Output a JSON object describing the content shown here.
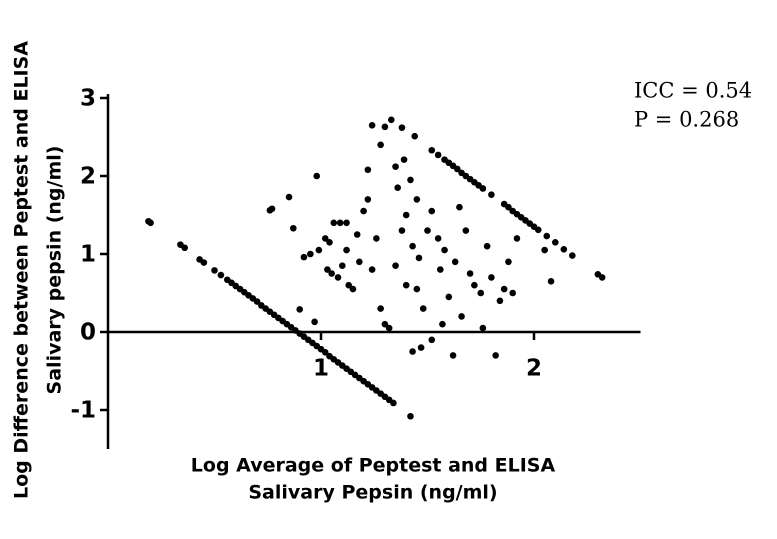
{
  "chart_data": {
    "type": "scatter",
    "xlabel": [
      "Log Average of Peptest and ELISA",
      "Salivary Pepsin (ng/ml)"
    ],
    "ylabel": [
      "Log Difference between Peptest and ELISA",
      "Salivary pepsin (ng/ml)"
    ],
    "annotations": [
      "ICC = 0.54",
      "P = 0.268"
    ],
    "color": "#000000",
    "xlim": [
      0,
      2.5
    ],
    "xticks": [
      1,
      2
    ],
    "ylim": [
      -1.5,
      3.05
    ],
    "yticks": [
      -1,
      0,
      1,
      2,
      3
    ],
    "x": [
      0.19,
      0.2,
      0.34,
      0.36,
      0.43,
      0.45,
      0.5,
      0.53,
      0.56,
      0.58,
      0.6,
      0.62,
      0.64,
      0.66,
      0.68,
      0.7,
      0.72,
      0.74,
      0.76,
      0.78,
      0.8,
      0.82,
      0.84,
      0.86,
      0.88,
      0.9,
      0.92,
      0.94,
      0.96,
      0.98,
      1.0,
      1.02,
      1.04,
      1.06,
      1.08,
      1.1,
      1.12,
      1.14,
      1.16,
      1.18,
      1.2,
      1.22,
      1.24,
      1.26,
      1.28,
      1.3,
      1.32,
      1.34,
      1.42,
      1.52,
      1.55,
      1.58,
      1.6,
      1.62,
      1.64,
      1.66,
      1.68,
      1.7,
      1.72,
      1.74,
      1.76,
      1.8,
      1.86,
      1.88,
      1.9,
      1.92,
      1.94,
      1.96,
      1.98,
      2.0,
      2.02,
      2.06,
      2.1,
      2.14,
      2.18,
      2.3,
      2.32,
      0.76,
      0.77,
      0.85,
      0.87,
      0.98,
      0.92,
      0.95,
      0.99,
      0.9,
      0.97,
      1.02,
      1.04,
      1.06,
      1.09,
      1.12,
      1.03,
      1.05,
      1.08,
      1.1,
      1.13,
      1.15,
      1.12,
      1.17,
      1.2,
      1.18,
      1.22,
      1.24,
      1.26,
      1.28,
      1.3,
      1.32,
      1.24,
      1.3,
      1.33,
      1.38,
      1.44,
      1.28,
      1.39,
      1.35,
      1.22,
      1.36,
      1.42,
      1.45,
      1.4,
      1.38,
      1.43,
      1.46,
      1.35,
      1.4,
      1.45,
      1.48,
      1.5,
      1.52,
      1.55,
      1.56,
      1.58,
      1.6,
      1.62,
      1.57,
      1.52,
      1.47,
      1.43,
      1.65,
      1.68,
      1.7,
      1.72,
      1.75,
      1.78,
      1.8,
      1.82,
      1.76,
      1.84,
      1.86,
      1.88,
      1.92,
      1.9,
      2.05,
      2.08,
      1.66,
      1.63
    ],
    "values": [
      1.42,
      1.4,
      1.12,
      1.08,
      0.93,
      0.89,
      0.79,
      0.73,
      0.67,
      0.63,
      0.59,
      0.55,
      0.51,
      0.47,
      0.43,
      0.39,
      0.34,
      0.3,
      0.26,
      0.22,
      0.18,
      0.14,
      0.1,
      0.06,
      0.02,
      -0.02,
      -0.06,
      -0.1,
      -0.14,
      -0.18,
      -0.22,
      -0.26,
      -0.31,
      -0.35,
      -0.39,
      -0.43,
      -0.47,
      -0.51,
      -0.55,
      -0.59,
      -0.63,
      -0.67,
      -0.71,
      -0.75,
      -0.79,
      -0.83,
      -0.87,
      -0.91,
      -1.08,
      2.33,
      2.27,
      2.21,
      2.17,
      2.13,
      2.09,
      2.04,
      2.0,
      1.96,
      1.92,
      1.88,
      1.84,
      1.76,
      1.64,
      1.6,
      1.55,
      1.51,
      1.47,
      1.43,
      1.39,
      1.35,
      1.31,
      1.23,
      1.15,
      1.06,
      0.98,
      0.74,
      0.7,
      1.56,
      1.58,
      1.73,
      1.33,
      2.0,
      0.96,
      1.0,
      1.05,
      0.29,
      0.13,
      1.2,
      1.15,
      1.4,
      1.4,
      1.4,
      0.8,
      0.75,
      0.7,
      0.85,
      0.6,
      0.55,
      1.05,
      1.25,
      1.55,
      0.9,
      1.7,
      0.8,
      1.2,
      0.3,
      0.1,
      0.05,
      2.65,
      2.63,
      2.72,
      2.62,
      2.51,
      2.4,
      2.21,
      2.12,
      2.08,
      1.85,
      1.95,
      1.7,
      1.5,
      1.3,
      1.1,
      0.95,
      0.85,
      0.6,
      0.55,
      0.3,
      1.3,
      1.55,
      1.2,
      0.8,
      1.05,
      0.45,
      -0.3,
      0.1,
      -0.1,
      -0.2,
      -0.25,
      1.6,
      1.3,
      0.75,
      0.6,
      0.5,
      1.1,
      0.7,
      -0.3,
      0.05,
      0.4,
      0.55,
      0.9,
      1.2,
      0.5,
      1.05,
      0.65,
      0.2,
      0.9
    ]
  }
}
